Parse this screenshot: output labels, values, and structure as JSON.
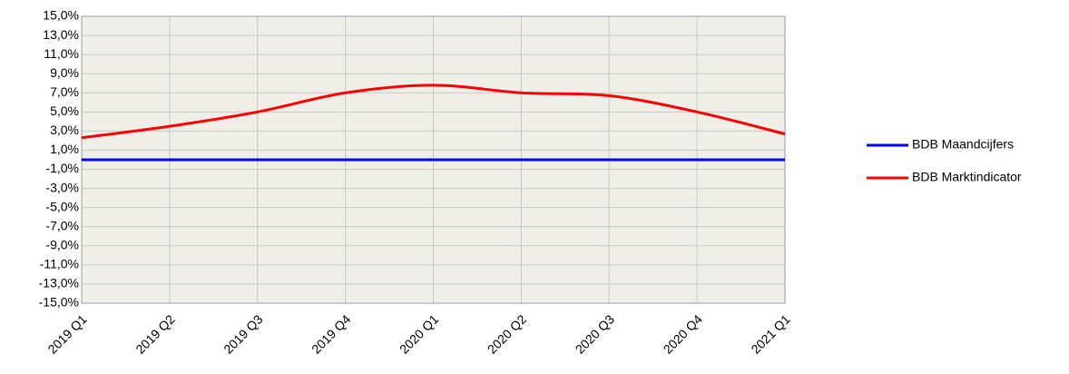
{
  "chart_data": {
    "type": "line",
    "categories": [
      "2019 Q1",
      "2019 Q2",
      "2019 Q3",
      "2019 Q4",
      "2020 Q1",
      "2020 Q2",
      "2020 Q3",
      "2020 Q4",
      "2021 Q1"
    ],
    "series": [
      {
        "name": "BDB Maandcijfers",
        "color": "#0000ff",
        "values": [
          0,
          0,
          0,
          0,
          0,
          0,
          0,
          0,
          0
        ]
      },
      {
        "name": "BDB Marktindicator",
        "color": "#ff0000",
        "values": [
          2.3,
          3.5,
          5.0,
          7.0,
          7.8,
          7.0,
          6.7,
          5.0,
          2.7
        ]
      }
    ],
    "ylim": [
      -15,
      15
    ],
    "yticks": [
      {
        "value": -15,
        "label": "-15,0%"
      },
      {
        "value": -13,
        "label": "-13,0%"
      },
      {
        "value": -11,
        "label": "-11,0%"
      },
      {
        "value": -9,
        "label": "-9,0%"
      },
      {
        "value": -7,
        "label": "-7,0%"
      },
      {
        "value": -5,
        "label": "-5,0%"
      },
      {
        "value": -3,
        "label": "-3,0%"
      },
      {
        "value": -1,
        "label": "-1,0%"
      },
      {
        "value": 1,
        "label": "1,0%"
      },
      {
        "value": 3,
        "label": "3,0%"
      },
      {
        "value": 5,
        "label": "5,0%"
      },
      {
        "value": 7,
        "label": "7,0%"
      },
      {
        "value": 9,
        "label": "9,0%"
      },
      {
        "value": 11,
        "label": "11,0%"
      },
      {
        "value": 13,
        "label": "13,0%"
      },
      {
        "value": 15,
        "label": "15,0%"
      }
    ],
    "grid": true,
    "legend": "right"
  }
}
